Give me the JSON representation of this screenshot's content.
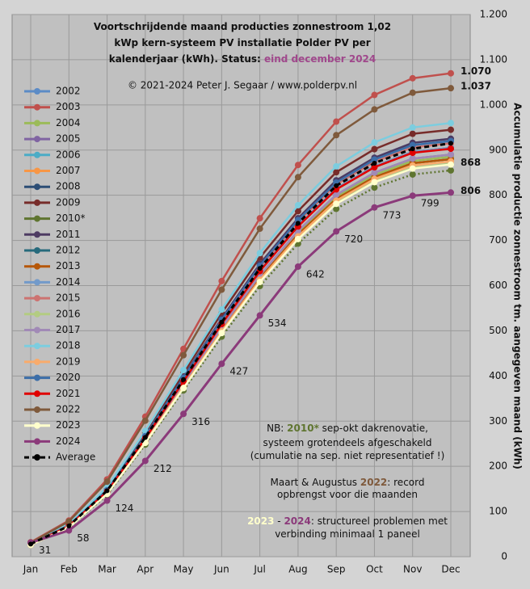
{
  "chart_data": {
    "type": "line",
    "title": [
      "Voortschrijdende maand producties zonnestroom 1,02",
      "kWp kern-systeem PV installatie Polder PV per",
      "kalenderjaar (kWh). Status: "
    ],
    "status": "eind december 2024",
    "status_color": "#a0488c",
    "subtitle": "© 2021-2024  Peter J. Segaar / www.polderpv.nl",
    "y_label": "Accumulatie productie zonnestroom tm. aangegeven maand (kWh)",
    "categories": [
      "Jan",
      "Feb",
      "Mar",
      "Apr",
      "May",
      "Jun",
      "Jul",
      "Aug",
      "Sep",
      "Oct",
      "Nov",
      "Dec"
    ],
    "ylim": [
      0,
      1200
    ],
    "yticks": [
      0,
      100,
      200,
      300,
      400,
      500,
      600,
      700,
      800,
      900,
      {
        "value": 1000,
        "label": "1.000"
      },
      {
        "value": 1100,
        "label": "1.100"
      },
      {
        "value": 1200,
        "label": "1.200"
      }
    ],
    "grid": true,
    "legend": "left",
    "series": [
      {
        "name": "2002",
        "color": "#5b8bc6",
        "values": [
          28,
          69,
          148,
          268,
          398,
          527,
          648,
          749,
          833,
          883,
          916,
          925
        ]
      },
      {
        "name": "2003",
        "color": "#c0504d",
        "values": [
          32,
          80,
          171,
          310,
          460,
          610,
          749,
          867,
          963,
          1022,
          1059,
          1070
        ],
        "value_labels": [
          null,
          null,
          null,
          null,
          null,
          null,
          null,
          null,
          null,
          null,
          null,
          "1.070"
        ]
      },
      {
        "name": "2004",
        "color": "#9bbb59",
        "values": [
          27,
          66,
          142,
          257,
          381,
          504,
          620,
          717,
          797,
          845,
          876,
          885
        ]
      },
      {
        "name": "2005",
        "color": "#8064a2",
        "values": [
          27,
          67,
          142,
          258,
          383,
          507,
          623,
          721,
          801,
          850,
          881,
          890
        ]
      },
      {
        "name": "2006",
        "color": "#4bacc6",
        "values": [
          28,
          69,
          147,
          267,
          396,
          524,
          644,
          745,
          828,
          879,
          911,
          920
        ]
      },
      {
        "name": "2007",
        "color": "#f79646",
        "values": [
          26,
          66,
          141,
          255,
          378,
          502,
          616,
          713,
          792,
          840,
          871,
          880
        ]
      },
      {
        "name": "2008",
        "color": "#2c4d75",
        "values": [
          27,
          68,
          145,
          262,
          389,
          516,
          634,
          733,
          815,
          864,
          896,
          905
        ]
      },
      {
        "name": "2009",
        "color": "#772c2a",
        "values": [
          28,
          71,
          151,
          274,
          406,
          539,
          662,
          765,
          851,
          902,
          936,
          945
        ]
      },
      {
        "name": "2010*",
        "color": "#5f7530",
        "values": [
          26,
          64,
          137,
          248,
          368,
          487,
          599,
          693,
          770,
          817,
          846,
          855
        ],
        "dashed": true
      },
      {
        "name": "2011",
        "color": "#4d3b62",
        "values": [
          28,
          69,
          148,
          268,
          398,
          527,
          648,
          749,
          833,
          883,
          916,
          925
        ]
      },
      {
        "name": "2012",
        "color": "#276a7c",
        "values": [
          26,
          66,
          141,
          255,
          378,
          502,
          616,
          713,
          792,
          840,
          871,
          880
        ]
      },
      {
        "name": "2013",
        "color": "#b65708",
        "values": [
          26,
          66,
          141,
          255,
          378,
          502,
          616,
          713,
          792,
          840,
          871,
          880
        ]
      },
      {
        "name": "2014",
        "color": "#729aca",
        "values": [
          27,
          68,
          145,
          262,
          389,
          516,
          634,
          733,
          815,
          864,
          896,
          905
        ]
      },
      {
        "name": "2015",
        "color": "#cd7371",
        "values": [
          27,
          69,
          146,
          265,
          393,
          522,
          641,
          741,
          824,
          874,
          906,
          915
        ]
      },
      {
        "name": "2016",
        "color": "#b3cc82",
        "values": [
          26,
          65,
          139,
          252,
          374,
          496,
          609,
          705,
          783,
          831,
          861,
          870
        ]
      },
      {
        "name": "2017",
        "color": "#a18ab6",
        "values": [
          27,
          67,
          142,
          258,
          383,
          507,
          623,
          721,
          801,
          850,
          881,
          890
        ]
      },
      {
        "name": "2018",
        "color": "#7ccddf",
        "values": [
          29,
          72,
          154,
          278,
          413,
          547,
          672,
          778,
          864,
          917,
          950,
          960
        ]
      },
      {
        "name": "2019",
        "color": "#f9ab6b",
        "values": [
          26,
          66,
          140,
          254,
          376,
          499,
          613,
          709,
          788,
          836,
          866,
          875
        ]
      },
      {
        "name": "2020",
        "color": "#3c6ea8",
        "values": [
          28,
          69,
          147,
          267,
          396,
          524,
          644,
          745,
          828,
          879,
          911,
          920
        ]
      },
      {
        "name": "2021",
        "color": "#e00000",
        "values": [
          27,
          68,
          144,
          262,
          388,
          515,
          632,
          731,
          813,
          862,
          894,
          903
        ]
      },
      {
        "name": "2022",
        "color": "#7f5a3c",
        "values": [
          31,
          78,
          166,
          301,
          446,
          591,
          726,
          840,
          933,
          990,
          1027,
          1037
        ],
        "value_labels": [
          null,
          null,
          null,
          null,
          null,
          null,
          null,
          null,
          null,
          null,
          null,
          "1.037"
        ]
      },
      {
        "name": "2023",
        "color": "#ffffcc",
        "values": [
          26,
          65,
          139,
          252,
          373,
          495,
          608,
          703,
          781,
          829,
          859,
          868
        ],
        "value_labels": [
          null,
          null,
          null,
          null,
          null,
          null,
          null,
          null,
          null,
          null,
          null,
          "868"
        ]
      },
      {
        "name": "2024",
        "color": "#8b3a7a",
        "values": [
          31,
          58,
          124,
          212,
          316,
          427,
          534,
          642,
          720,
          773,
          799,
          806
        ],
        "value_labels": [
          "31",
          "58",
          "124",
          "212",
          "316",
          "427",
          "534",
          "642",
          "720",
          "773",
          "799",
          "806"
        ]
      },
      {
        "name": "Average",
        "color": "#000000",
        "values": [
          28,
          68,
          146,
          264,
          392,
          519,
          638,
          738,
          821,
          871,
          903,
          915
        ],
        "dashed": true
      }
    ],
    "annotations": [
      [
        [
          {
            "text": "NB: "
          },
          {
            "text": "2010*",
            "color": "#5f7530"
          },
          {
            "text": " sep-okt dakrenovatie,"
          }
        ],
        [
          {
            "text": "systeem grotendeels afgeschakeld"
          }
        ],
        [
          {
            "text": "(cumulatie na sep. niet representatief !)"
          }
        ]
      ],
      [
        [
          {
            "text": "Maart & Augustus "
          },
          {
            "text": "2022",
            "color": "#7f5a3c"
          },
          {
            "text": ": record"
          }
        ],
        [
          {
            "text": "opbrengst voor die maanden"
          }
        ]
      ],
      [
        [
          {
            "text": "2023",
            "color": "#ffffcc"
          },
          {
            "text": " - "
          },
          {
            "text": "2024",
            "color": "#8b3a7a"
          },
          {
            "text": ": structureel problemen  met"
          }
        ],
        [
          {
            "text": "verbinding minimaal  1 paneel"
          }
        ]
      ]
    ]
  }
}
